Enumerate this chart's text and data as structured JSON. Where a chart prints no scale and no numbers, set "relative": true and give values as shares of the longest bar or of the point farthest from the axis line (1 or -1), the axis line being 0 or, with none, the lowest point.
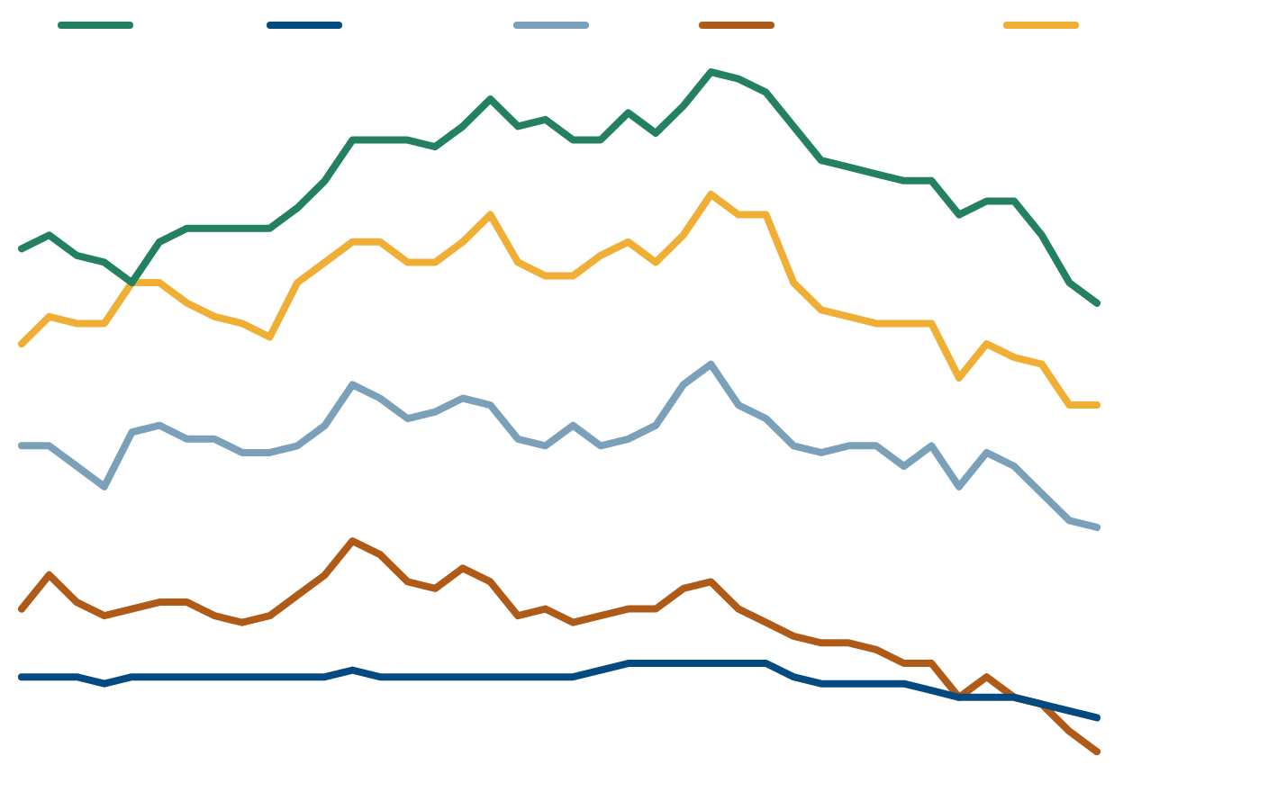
{
  "chart_data": {
    "type": "line",
    "relative": true,
    "grid": false,
    "marker": "none",
    "line_style": "solid",
    "categories": [
      null,
      null,
      null,
      null,
      null,
      null,
      null,
      null,
      null,
      null,
      null,
      null,
      null,
      null,
      null,
      null,
      null,
      null,
      null,
      null,
      null,
      null,
      null,
      null,
      null,
      null,
      null,
      null,
      null,
      null,
      null,
      null,
      null,
      null,
      null,
      null,
      null,
      null,
      null,
      null
    ],
    "series": [
      {
        "color": "#238060",
        "values": [
          0.74,
          0.76,
          0.73,
          0.72,
          0.69,
          0.75,
          0.77,
          0.77,
          0.77,
          0.77,
          0.8,
          0.84,
          0.9,
          0.9,
          0.9,
          0.89,
          0.92,
          0.96,
          0.92,
          0.93,
          0.9,
          0.9,
          0.94,
          0.91,
          0.95,
          1.0,
          0.99,
          0.97,
          0.92,
          0.87,
          0.86,
          0.85,
          0.84,
          0.84,
          0.79,
          0.81,
          0.81,
          0.76,
          0.69,
          0.66
        ]
      },
      {
        "color": "#024a80",
        "values": [
          0.11,
          0.11,
          0.11,
          0.1,
          0.11,
          0.11,
          0.11,
          0.11,
          0.11,
          0.11,
          0.11,
          0.11,
          0.12,
          0.11,
          0.11,
          0.11,
          0.11,
          0.11,
          0.11,
          0.11,
          0.11,
          0.12,
          0.13,
          0.13,
          0.13,
          0.13,
          0.13,
          0.13,
          0.11,
          0.1,
          0.1,
          0.1,
          0.1,
          0.09,
          0.08,
          0.08,
          0.08,
          0.07,
          0.06,
          0.05
        ]
      },
      {
        "color": "#7aa0ba",
        "values": [
          0.45,
          0.45,
          0.42,
          0.39,
          0.47,
          0.48,
          0.46,
          0.46,
          0.44,
          0.44,
          0.45,
          0.48,
          0.54,
          0.52,
          0.49,
          0.5,
          0.52,
          0.51,
          0.46,
          0.45,
          0.48,
          0.45,
          0.46,
          0.48,
          0.54,
          0.57,
          0.51,
          0.49,
          0.45,
          0.44,
          0.45,
          0.45,
          0.42,
          0.45,
          0.39,
          0.44,
          0.42,
          0.38,
          0.34,
          0.33
        ]
      },
      {
        "color": "#b05a17",
        "values": [
          0.21,
          0.26,
          0.22,
          0.2,
          0.21,
          0.22,
          0.22,
          0.2,
          0.19,
          0.2,
          0.23,
          0.26,
          0.31,
          0.29,
          0.25,
          0.24,
          0.27,
          0.25,
          0.2,
          0.21,
          0.19,
          0.2,
          0.21,
          0.21,
          0.24,
          0.25,
          0.21,
          0.19,
          0.17,
          0.16,
          0.16,
          0.15,
          0.13,
          0.13,
          0.08,
          0.11,
          0.08,
          0.07,
          0.03,
          0.0
        ]
      },
      {
        "color": "#f0ae35",
        "values": [
          0.6,
          0.64,
          0.63,
          0.63,
          0.69,
          0.69,
          0.66,
          0.64,
          0.63,
          0.61,
          0.69,
          0.72,
          0.75,
          0.75,
          0.72,
          0.72,
          0.75,
          0.79,
          0.72,
          0.7,
          0.7,
          0.73,
          0.75,
          0.72,
          0.76,
          0.82,
          0.79,
          0.79,
          0.69,
          0.65,
          0.64,
          0.63,
          0.63,
          0.63,
          0.55,
          0.6,
          0.58,
          0.57,
          0.51,
          0.51
        ]
      }
    ]
  }
}
